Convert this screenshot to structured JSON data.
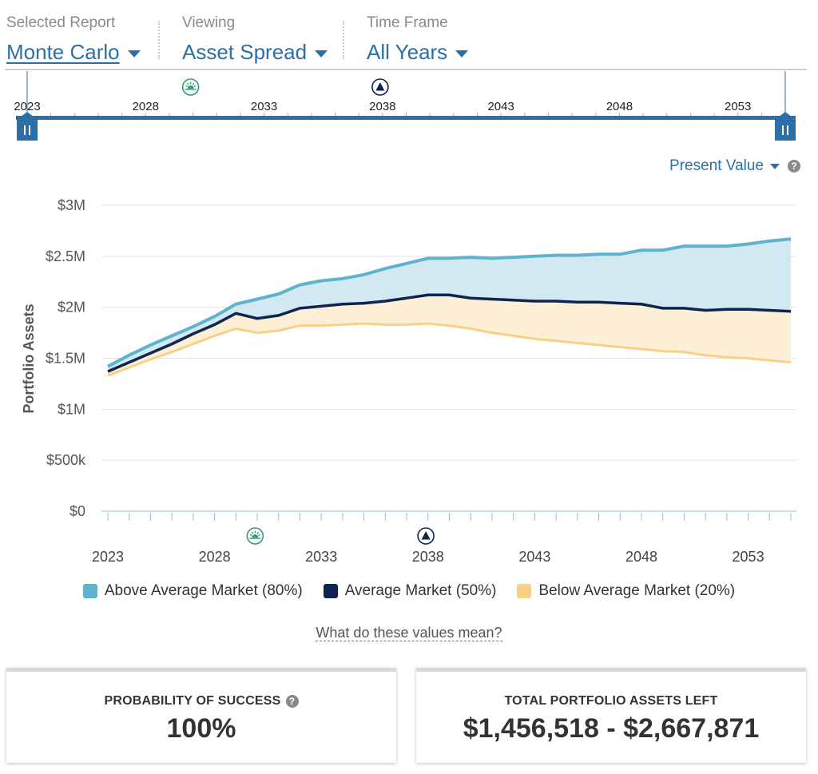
{
  "header": {
    "report": {
      "label": "Selected Report",
      "value": "Monte Carlo"
    },
    "viewing": {
      "label": "Viewing",
      "value": "Asset Spread"
    },
    "timeframe": {
      "label": "Time Frame",
      "value": "All Years"
    }
  },
  "timeline": {
    "ticks": [
      "2023",
      "2028",
      "2033",
      "2038",
      "2043",
      "2048",
      "2053"
    ],
    "start_year": 2023,
    "end_year": 2055,
    "markers": [
      {
        "year": 2029.9,
        "icon": "retirement-sun-icon"
      },
      {
        "year": 2037.9,
        "icon": "milestone-triangle-icon"
      }
    ]
  },
  "value_mode": {
    "label": "Present Value"
  },
  "chart_data": {
    "type": "area",
    "ylabel": "Portfolio Assets",
    "xlabel": "",
    "ylim": [
      0,
      3000000
    ],
    "yticks": [
      0,
      500000,
      1000000,
      1500000,
      2000000,
      2500000,
      3000000
    ],
    "ytick_labels": [
      "$0",
      "$500k",
      "$1M",
      "$1.5M",
      "$2M",
      "$2.5M",
      "$3M"
    ],
    "xticks": [
      "2023",
      "2028",
      "2033",
      "2038",
      "2043",
      "2048",
      "2053"
    ],
    "x": [
      2023,
      2024,
      2025,
      2026,
      2027,
      2028,
      2029,
      2030,
      2031,
      2032,
      2033,
      2034,
      2035,
      2036,
      2037,
      2038,
      2039,
      2040,
      2041,
      2042,
      2043,
      2044,
      2045,
      2046,
      2047,
      2048,
      2049,
      2050,
      2051,
      2052,
      2053,
      2054,
      2055
    ],
    "series": [
      {
        "name": "Above Average Market (80%)",
        "color": "#5eb3cf",
        "fill": "#d2e9f1",
        "values": [
          1420000,
          1530000,
          1630000,
          1720000,
          1810000,
          1910000,
          2030000,
          2080000,
          2130000,
          2220000,
          2260000,
          2280000,
          2320000,
          2380000,
          2430000,
          2480000,
          2480000,
          2490000,
          2480000,
          2490000,
          2500000,
          2510000,
          2510000,
          2520000,
          2520000,
          2560000,
          2560000,
          2600000,
          2600000,
          2600000,
          2620000,
          2650000,
          2670000
        ]
      },
      {
        "name": "Average Market (50%)",
        "color": "#0f2550",
        "values": [
          1370000,
          1460000,
          1550000,
          1640000,
          1740000,
          1830000,
          1940000,
          1890000,
          1920000,
          1990000,
          2010000,
          2030000,
          2040000,
          2060000,
          2090000,
          2120000,
          2120000,
          2090000,
          2080000,
          2070000,
          2060000,
          2060000,
          2050000,
          2050000,
          2040000,
          2030000,
          1990000,
          1990000,
          1970000,
          1980000,
          1980000,
          1970000,
          1960000
        ]
      },
      {
        "name": "Below Average Market (20%)",
        "color": "#f8d187",
        "fill": "#fdefd6",
        "values": [
          1330000,
          1410000,
          1490000,
          1560000,
          1640000,
          1720000,
          1790000,
          1750000,
          1770000,
          1820000,
          1820000,
          1830000,
          1840000,
          1830000,
          1830000,
          1840000,
          1820000,
          1790000,
          1750000,
          1720000,
          1690000,
          1670000,
          1650000,
          1630000,
          1610000,
          1590000,
          1570000,
          1560000,
          1530000,
          1510000,
          1500000,
          1480000,
          1460000
        ]
      }
    ],
    "markers": [
      {
        "year": 2029.9,
        "icon": "retirement-sun-icon"
      },
      {
        "year": 2037.9,
        "icon": "milestone-triangle-icon"
      }
    ]
  },
  "legend": {
    "items": [
      {
        "label": "Above Average Market (80%)",
        "color": "#5eb3cf"
      },
      {
        "label": "Average Market (50%)",
        "color": "#0f2550"
      },
      {
        "label": "Below Average Market (20%)",
        "color": "#f8d187"
      }
    ]
  },
  "help_link": "What do these values mean?",
  "cards": {
    "probability": {
      "title": "PROBABILITY OF SUCCESS",
      "value": "100%"
    },
    "assets": {
      "title": "TOTAL PORTFOLIO ASSETS LEFT",
      "value": "$1,456,518 - $2,667,871"
    }
  },
  "colors": {
    "accent": "#2b6fa6",
    "timeline_bar": "#2b6fa6",
    "sun_icon": "#2e9e6b",
    "triangle_icon": "#0f2550"
  }
}
